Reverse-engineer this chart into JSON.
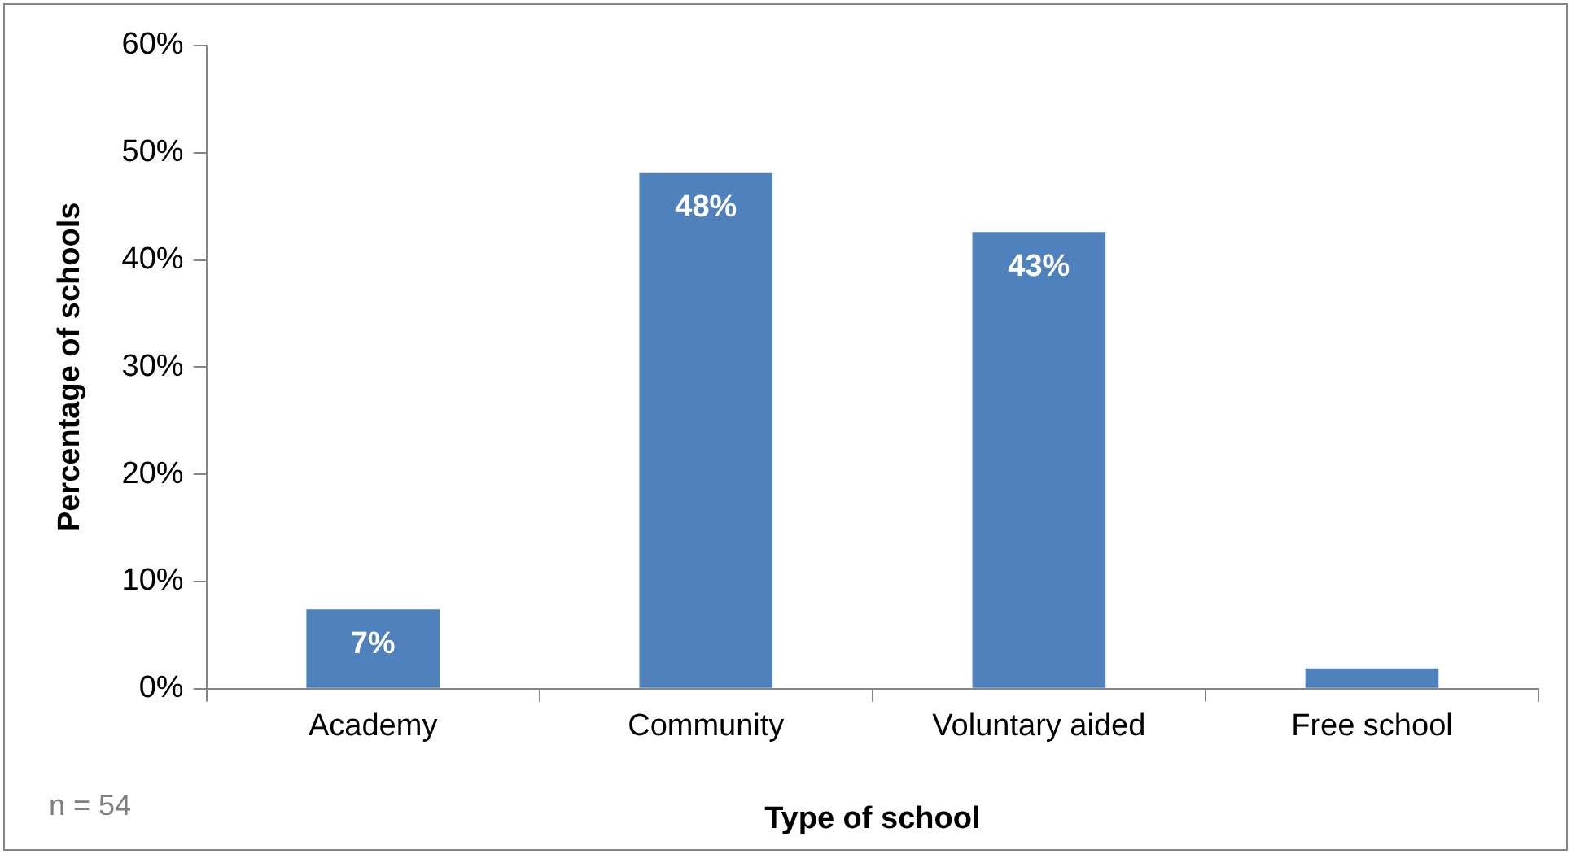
{
  "chart_data": {
    "type": "bar",
    "xlabel": "Type of school",
    "ylabel": "Percentage of schools",
    "categories": [
      "Academy",
      "Community",
      "Voluntary aided",
      "Free school"
    ],
    "values": [
      7.4,
      48.1,
      42.6,
      1.9
    ],
    "value_labels": [
      "7%",
      "48%",
      "43%",
      null
    ],
    "color": "#4f81bd",
    "ylim": [
      0,
      60
    ],
    "yticks": [
      {
        "value": 0,
        "label": "0%"
      },
      {
        "value": 10,
        "label": "10%"
      },
      {
        "value": 20,
        "label": "20%"
      },
      {
        "value": 30,
        "label": "30%"
      },
      {
        "value": 40,
        "label": "40%"
      },
      {
        "value": 50,
        "label": "50%"
      },
      {
        "value": 60,
        "label": "60%"
      }
    ],
    "annotations": [
      "n = 54"
    ],
    "grid": false,
    "legend": false
  }
}
